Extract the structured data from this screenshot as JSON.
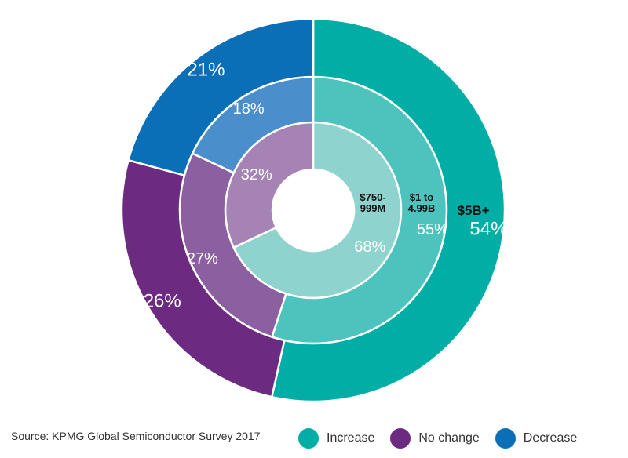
{
  "chart_data": {
    "type": "pie",
    "variant": "nested-donut",
    "categories": [
      "Increase",
      "No change",
      "Decrease"
    ],
    "colors": {
      "Increase": [
        "#8fd3cf",
        "#4cc4bd",
        "#00aea6"
      ],
      "No change": [
        "#a583b4",
        "#8c5fa0",
        "#6c2a81"
      ],
      "Decrease": [
        "#3a9ad9",
        "#4a8fcb",
        "#0b6fb8"
      ]
    },
    "series": [
      {
        "name": "$750-999M",
        "label_lines": [
          "$750-",
          "999M"
        ],
        "values": [
          68,
          32,
          0
        ],
        "labels": [
          "68%",
          "32%",
          ""
        ]
      },
      {
        "name": "$1 to 4.99B",
        "label_lines": [
          "$1 to",
          "4.99B"
        ],
        "values": [
          55,
          27,
          18
        ],
        "labels": [
          "55%",
          "27%",
          "18%"
        ]
      },
      {
        "name": "$5B+",
        "label_lines": [
          "$5B+"
        ],
        "values": [
          54,
          26,
          21
        ],
        "labels": [
          "54%",
          "26%",
          "21%"
        ]
      }
    ],
    "legend": {
      "position": "bottom-right",
      "items": [
        "Increase",
        "No change",
        "Decrease"
      ]
    }
  },
  "source": "Source: KPMG Global Semiconductor Survey 2017"
}
